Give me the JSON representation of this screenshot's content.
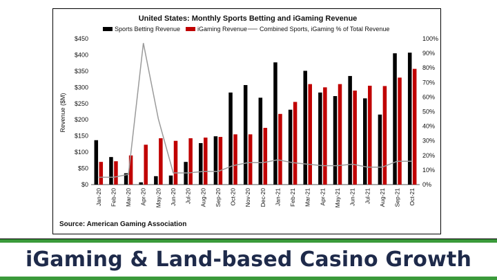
{
  "slide": {
    "banner_title": "iGaming & Land-based Casino Growth",
    "banner_border_color": "#3a9a3a",
    "banner_text_color": "#1e2a4a"
  },
  "source_note": "Source: American Gaming Association",
  "chart_data": {
    "type": "bar",
    "title": "United States: Monthly Sports Betting and iGaming Revenue",
    "categories": [
      "Jan-20",
      "Feb-20",
      "Mar-20",
      "Apr-20",
      "May-20",
      "Jun-20",
      "Jul-20",
      "Aug-20",
      "Sep-20",
      "Oct-20",
      "Nov-20",
      "Dec-20",
      "Jan-21",
      "Feb-21",
      "Mar-21",
      "Apr-21",
      "May-21",
      "Jun-21",
      "Jul-21",
      "Aug-21",
      "Sep-21",
      "Oct-21"
    ],
    "series": [
      {
        "name": "Sports Betting Revenue",
        "kind": "bar",
        "axis": "left",
        "color": "#000000",
        "values": [
          137,
          85,
          35,
          7,
          26,
          28,
          70,
          128,
          149,
          284,
          307,
          268,
          377,
          231,
          351,
          284,
          273,
          335,
          266,
          216,
          405,
          407
        ]
      },
      {
        "name": "iGaming Revenue",
        "kind": "bar",
        "axis": "left",
        "color": "#c00000",
        "values": [
          70,
          72,
          90,
          123,
          143,
          135,
          143,
          145,
          147,
          155,
          155,
          175,
          218,
          255,
          310,
          300,
          310,
          290,
          305,
          304,
          330,
          357
        ]
      },
      {
        "name": "Combined Sports, iGaming % of Total Revenue",
        "kind": "line",
        "axis": "right",
        "color": "#9a9a9a",
        "values": [
          5,
          5,
          7,
          97,
          45,
          8,
          8,
          9,
          9,
          13,
          15,
          15,
          17,
          15,
          14,
          13,
          13,
          14,
          12,
          12,
          16,
          16
        ]
      }
    ],
    "ylabel": "Revenue ($M)",
    "ylim": [
      0,
      450
    ],
    "yticks": [
      "$0",
      "$50",
      "$100",
      "$150",
      "$200",
      "$250",
      "$300",
      "$350",
      "$400",
      "$450"
    ],
    "y2lim": [
      0,
      100
    ],
    "y2ticks": [
      "0%",
      "10%",
      "20%",
      "30%",
      "40%",
      "50%",
      "60%",
      "70%",
      "80%",
      "90%",
      "100%"
    ],
    "grid": false,
    "legend": "top"
  }
}
